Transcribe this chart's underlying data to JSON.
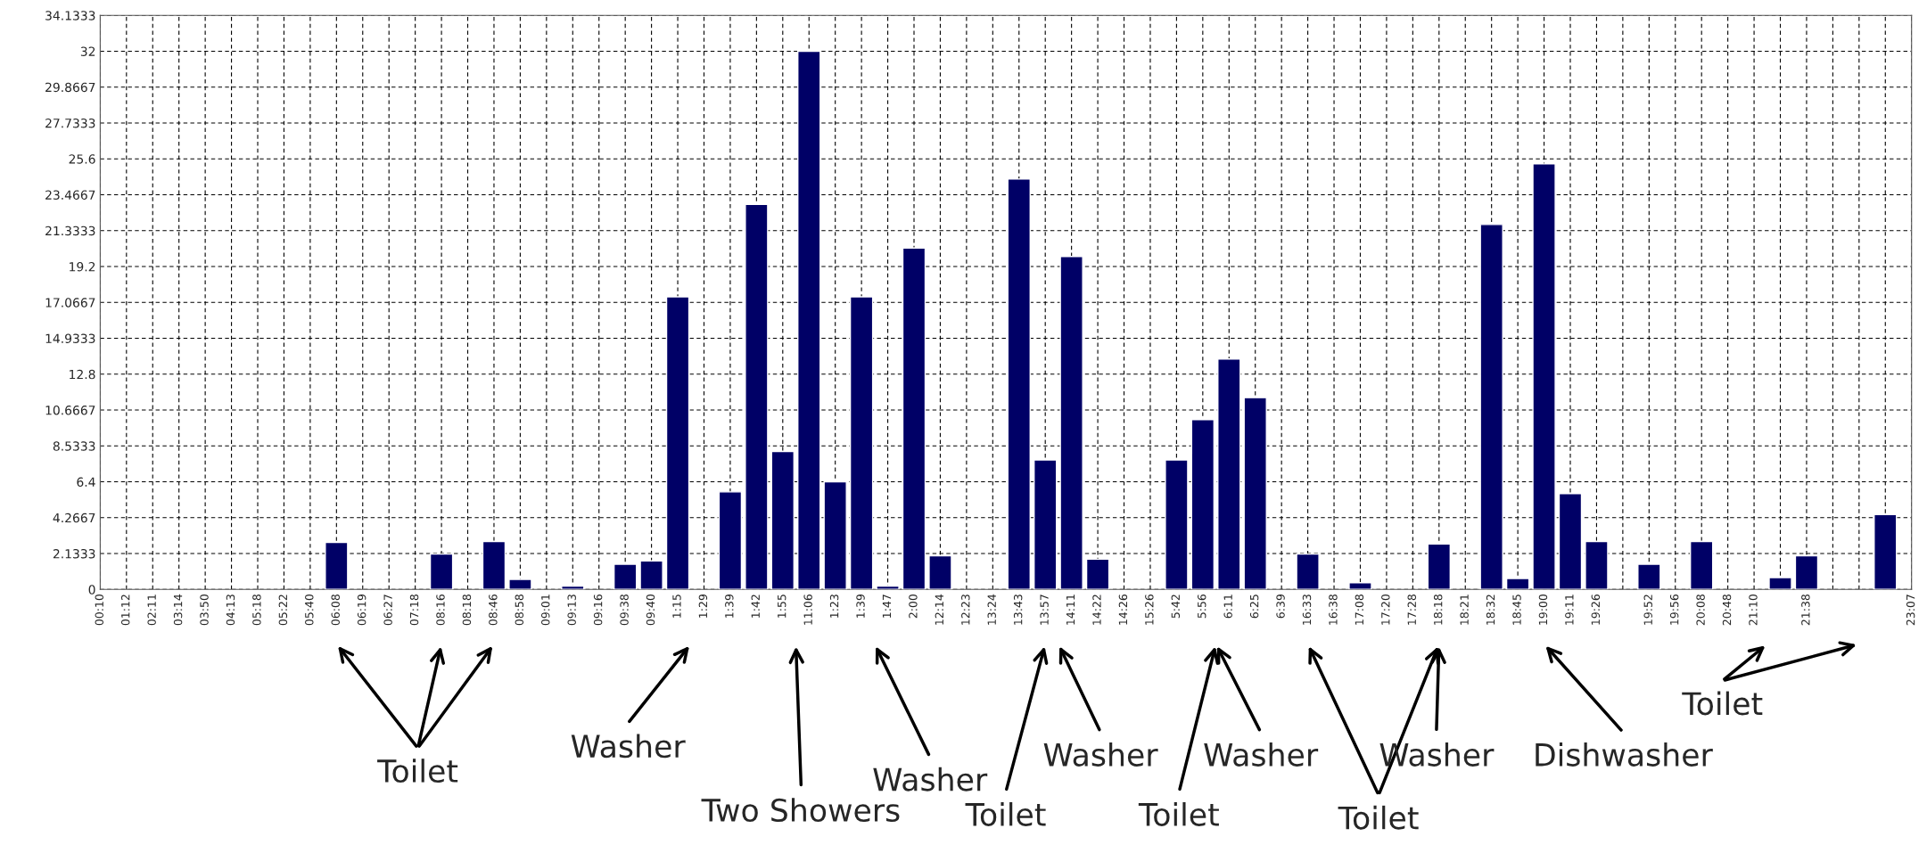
{
  "chart_data": {
    "type": "bar",
    "categories": [
      "00:10",
      "01:12",
      "02:11",
      "03:14",
      "03:50",
      "04:13",
      "05:18",
      "05:22",
      "05:40",
      "06:08",
      "06:19",
      "06:27",
      "07:18",
      "08:16",
      "08:18",
      "08:46",
      "08:58",
      "09:01",
      "09:13",
      "09:16",
      "09:38",
      "09:40",
      "1:15",
      "1:29",
      "1:39",
      "1:42",
      "1:55",
      "11:06",
      "1:23",
      "1:39",
      "1:47",
      "2:00",
      "12:14",
      "12:23",
      "13:24",
      "13:43",
      "13:57",
      "14:11",
      "14:22",
      "14:26",
      "15:26",
      "5:42",
      "5:56",
      "6:11",
      "6:25",
      "6:39",
      "16:33",
      "16:38",
      "17:08",
      "17:20",
      "17:28",
      "18:18",
      "18:21",
      "18:32",
      "18:45",
      "19:00",
      "19:11",
      "19:26",
      null,
      "19:52",
      "19:56",
      "20:08",
      "20:48",
      "21:10",
      null,
      "21:38",
      null,
      null,
      null,
      "23:07"
    ],
    "values": [
      null,
      null,
      null,
      null,
      null,
      null,
      null,
      null,
      null,
      2.8,
      null,
      null,
      null,
      2.1,
      null,
      2.85,
      0.6,
      null,
      0.2,
      null,
      1.5,
      1.7,
      17.4,
      null,
      5.8,
      22.9,
      8.2,
      32,
      6.4,
      17.4,
      0.2,
      20.3,
      2.0,
      null,
      null,
      24.4,
      7.7,
      19.8,
      1.8,
      null,
      null,
      7.7,
      10.1,
      13.7,
      11.4,
      null,
      2.1,
      null,
      0.4,
      null,
      null,
      2.7,
      null,
      21.7,
      0.65,
      25.3,
      5.7,
      2.85,
      null,
      1.5,
      null,
      2.85,
      null,
      null,
      0.7,
      2.0,
      null,
      null,
      4.45,
      null
    ],
    "color": "#000066",
    "ylim": [
      0,
      34.1333
    ],
    "yticks": [
      0,
      2.1333,
      4.2667,
      6.4,
      8.5333,
      10.6667,
      12.8,
      14.9333,
      17.0667,
      19.2,
      21.3333,
      23.4667,
      25.6,
      27.7333,
      29.8667,
      32,
      34.1333
    ],
    "grid": true,
    "line_style": "dashed",
    "annotations": [
      "Toilet",
      "Washer",
      "Two Showers",
      "Washer",
      "Toilet",
      "Washer",
      "Toilet",
      "Washer",
      "Toilet",
      "Washer",
      "Dishwasher",
      "Toilet"
    ]
  }
}
